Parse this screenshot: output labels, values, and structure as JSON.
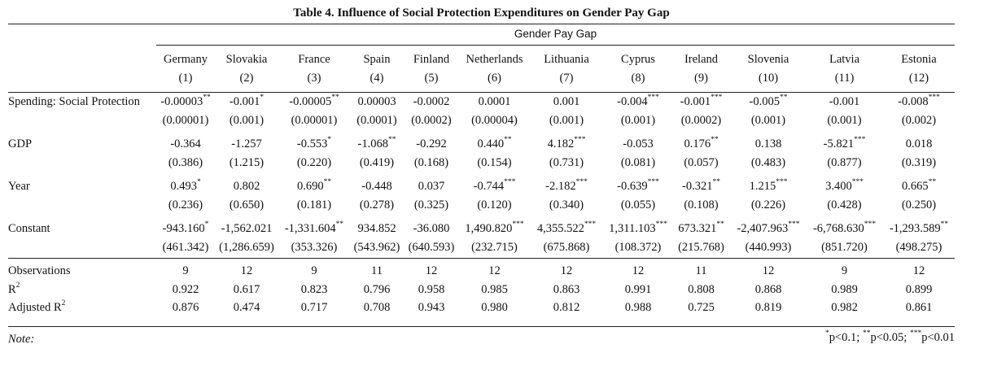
{
  "title": "Table 4. Influence of Social Protection Expenditures on Gender Pay Gap",
  "supertitle": "Gender Pay Gap",
  "columns": [
    {
      "name": "Germany",
      "num": "(1)"
    },
    {
      "name": "Slovakia",
      "num": "(2)"
    },
    {
      "name": "France",
      "num": "(3)"
    },
    {
      "name": "Spain",
      "num": "(4)"
    },
    {
      "name": "Finland",
      "num": "(5)"
    },
    {
      "name": "Netherlands",
      "num": "(6)"
    },
    {
      "name": "Lithuania",
      "num": "(7)"
    },
    {
      "name": "Cyprus",
      "num": "(8)"
    },
    {
      "name": "Ireland",
      "num": "(9)"
    },
    {
      "name": "Slovenia",
      "num": "(10)"
    },
    {
      "name": "Latvia",
      "num": "(11)"
    },
    {
      "name": "Estonia",
      "num": "(12)"
    }
  ],
  "coef_rows": [
    {
      "label": "Spending: Social Protection",
      "coef": [
        "-0.00003",
        "-0.001",
        "-0.00005",
        "0.00003",
        "-0.0002",
        "0.0001",
        "0.001",
        "-0.004",
        "-0.001",
        "-0.005",
        "-0.001",
        "-0.008"
      ],
      "stars": [
        "**",
        "*",
        "**",
        "",
        "",
        "",
        "",
        "***",
        "***",
        "**",
        "",
        "***"
      ],
      "se": [
        "(0.00001)",
        "(0.001)",
        "(0.00001)",
        "(0.0001)",
        "(0.0002)",
        "(0.00004)",
        "(0.001)",
        "(0.001)",
        "(0.0002)",
        "(0.001)",
        "(0.001)",
        "(0.002)"
      ]
    },
    {
      "label": "GDP",
      "coef": [
        "-0.364",
        "-1.257",
        "-0.553",
        "-1.068",
        "-0.292",
        "0.440",
        "4.182",
        "-0.053",
        "0.176",
        "0.138",
        "-5.821",
        "0.018"
      ],
      "stars": [
        "",
        "",
        "*",
        "**",
        "",
        "**",
        "***",
        "",
        "**",
        "",
        "***",
        ""
      ],
      "se": [
        "(0.386)",
        "(1.215)",
        "(0.220)",
        "(0.419)",
        "(0.168)",
        "(0.154)",
        "(0.731)",
        "(0.081)",
        "(0.057)",
        "(0.483)",
        "(0.877)",
        "(0.319)"
      ]
    },
    {
      "label": "Year",
      "coef": [
        "0.493",
        "0.802",
        "0.690",
        "-0.448",
        "0.037",
        "-0.744",
        "-2.182",
        "-0.639",
        "-0.321",
        "1.215",
        "3.400",
        "0.665"
      ],
      "stars": [
        "*",
        "",
        "**",
        "",
        "",
        "***",
        "***",
        "***",
        "**",
        "***",
        "***",
        "**"
      ],
      "se": [
        "(0.236)",
        "(0.650)",
        "(0.181)",
        "(0.278)",
        "(0.325)",
        "(0.120)",
        "(0.340)",
        "(0.055)",
        "(0.108)",
        "(0.226)",
        "(0.428)",
        "(0.250)"
      ]
    },
    {
      "label": "Constant",
      "coef": [
        "-943.160",
        "-1,562.021",
        "-1,331.604",
        "934.852",
        "-36.080",
        "1,490.820",
        "4,355.522",
        "1,311.103",
        "673.321",
        "-2,407.963",
        "-6,768.630",
        "-1,293.589"
      ],
      "stars": [
        "*",
        "",
        "**",
        "",
        "",
        "***",
        "***",
        "***",
        "**",
        "***",
        "***",
        "**"
      ],
      "se": [
        "(461.342)",
        "(1,286.659)",
        "(353.326)",
        "(543.962)",
        "(640.593)",
        "(232.715)",
        "(675.868)",
        "(108.372)",
        "(215.768)",
        "(440.993)",
        "(851.720)",
        "(498.275)"
      ]
    }
  ],
  "stat_rows": [
    {
      "label": "Observations",
      "sup": "",
      "values": [
        "9",
        "12",
        "9",
        "11",
        "12",
        "12",
        "12",
        "12",
        "11",
        "12",
        "9",
        "12"
      ]
    },
    {
      "label": "R",
      "sup": "2",
      "values": [
        "0.922",
        "0.617",
        "0.823",
        "0.796",
        "0.958",
        "0.985",
        "0.863",
        "0.991",
        "0.808",
        "0.868",
        "0.989",
        "0.899"
      ]
    },
    {
      "label": "Adjusted R",
      "sup": "2",
      "values": [
        "0.876",
        "0.474",
        "0.717",
        "0.708",
        "0.943",
        "0.980",
        "0.812",
        "0.988",
        "0.725",
        "0.819",
        "0.982",
        "0.861"
      ]
    }
  ],
  "note_label": "Note:",
  "significance": [
    {
      "stars": "*",
      "text": "p<0.1;"
    },
    {
      "stars": "**",
      "text": "p<0.05;"
    },
    {
      "stars": "***",
      "text": "p<0.01"
    }
  ]
}
